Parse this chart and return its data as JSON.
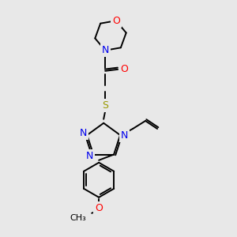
{
  "background_color": "#e8e8e8",
  "atom_colors": {
    "C": "#000000",
    "N": "#0000ee",
    "O": "#ff0000",
    "S": "#999900"
  },
  "figsize": [
    3.0,
    3.0
  ],
  "dpi": 100
}
